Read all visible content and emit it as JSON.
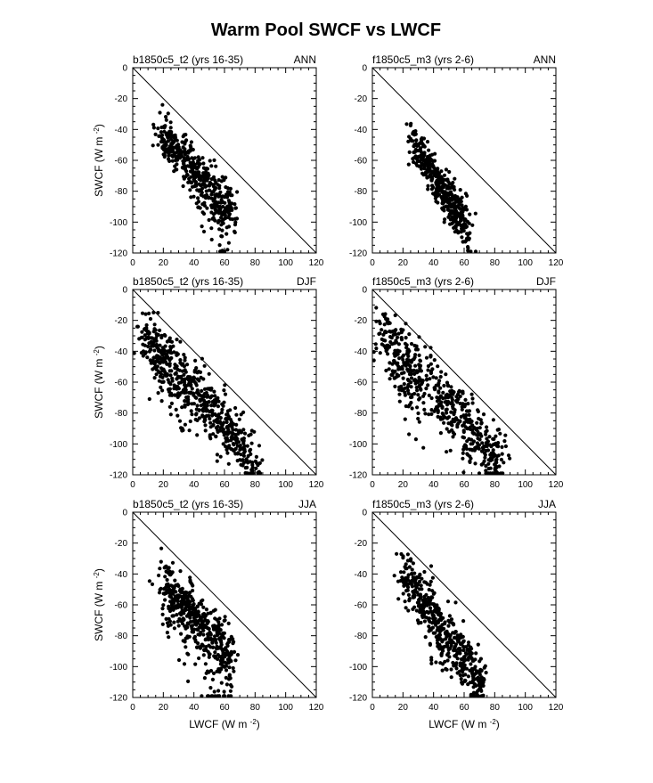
{
  "figure": {
    "title": "Warm Pool SWCF vs LWCF",
    "xlabel": "LWCF (W m",
    "ylabel": "SWCF (W m",
    "unit_exponent": "-2"
  },
  "chart_data": [
    {
      "type": "scatter",
      "left_label": "b1850c5_t2 (yrs 16-35)",
      "right_label": "ANN",
      "xlim": [
        0,
        120
      ],
      "ylim": [
        -120,
        0
      ],
      "xticks": [
        0,
        20,
        40,
        60,
        80,
        100,
        120
      ],
      "yticks": [
        0,
        -20,
        -40,
        -60,
        -80,
        -100,
        -120
      ],
      "reference_line": [
        [
          0,
          0
        ],
        [
          120,
          -120
        ]
      ],
      "clusters": [
        {
          "x0": 18,
          "x1": 65,
          "y0": -42,
          "y1": -95,
          "spread": 7,
          "n": 420
        },
        {
          "x0": 40,
          "x1": 62,
          "y0": -80,
          "y1": -118,
          "spread": 8,
          "n": 40
        }
      ]
    },
    {
      "type": "scatter",
      "left_label": "f1850c5_m3 (yrs 2-6)",
      "right_label": "ANN",
      "xlim": [
        0,
        120
      ],
      "ylim": [
        -120,
        0
      ],
      "xticks": [
        0,
        20,
        40,
        60,
        80,
        100,
        120
      ],
      "yticks": [
        0,
        -20,
        -40,
        -60,
        -80,
        -100,
        -120
      ],
      "reference_line": [
        [
          0,
          0
        ],
        [
          120,
          -120
        ]
      ],
      "clusters": [
        {
          "x0": 26,
          "x1": 62,
          "y0": -48,
          "y1": -102,
          "spread": 6,
          "n": 380
        },
        {
          "x0": 45,
          "x1": 68,
          "y0": -88,
          "y1": -115,
          "spread": 5,
          "n": 40
        }
      ]
    },
    {
      "type": "scatter",
      "left_label": "b1850c5_t2 (yrs 16-35)",
      "right_label": "DJF",
      "xlim": [
        0,
        120
      ],
      "ylim": [
        -120,
        0
      ],
      "xticks": [
        0,
        20,
        40,
        60,
        80,
        100,
        120
      ],
      "yticks": [
        0,
        -20,
        -40,
        -60,
        -80,
        -100,
        -120
      ],
      "reference_line": [
        [
          0,
          0
        ],
        [
          120,
          -120
        ]
      ],
      "clusters": [
        {
          "x0": 6,
          "x1": 80,
          "y0": -27,
          "y1": -112,
          "spread": 9,
          "n": 560
        },
        {
          "x0": 15,
          "x1": 35,
          "y0": -45,
          "y1": -95,
          "spread": 6,
          "n": 40
        }
      ]
    },
    {
      "type": "scatter",
      "left_label": "f1850c5_m3 (yrs 2-6)",
      "right_label": "DJF",
      "xlim": [
        0,
        120
      ],
      "ylim": [
        -120,
        0
      ],
      "xticks": [
        0,
        20,
        40,
        60,
        80,
        100,
        120
      ],
      "yticks": [
        0,
        -20,
        -40,
        -60,
        -80,
        -100,
        -120
      ],
      "reference_line": [
        [
          0,
          0
        ],
        [
          120,
          -120
        ]
      ],
      "clusters": [
        {
          "x0": 5,
          "x1": 85,
          "y0": -25,
          "y1": -115,
          "spread": 10,
          "n": 520
        },
        {
          "x0": 10,
          "x1": 30,
          "y0": -40,
          "y1": -85,
          "spread": 8,
          "n": 60
        }
      ]
    },
    {
      "type": "scatter",
      "left_label": "b1850c5_t2 (yrs 16-35)",
      "right_label": "JJA",
      "xlim": [
        0,
        120
      ],
      "ylim": [
        -120,
        0
      ],
      "xticks": [
        0,
        20,
        40,
        60,
        80,
        100,
        120
      ],
      "yticks": [
        0,
        -20,
        -40,
        -60,
        -80,
        -100,
        -120
      ],
      "reference_line": [
        [
          0,
          0
        ],
        [
          120,
          -120
        ]
      ],
      "clusters": [
        {
          "x0": 20,
          "x1": 65,
          "y0": -45,
          "y1": -95,
          "spread": 9,
          "n": 420
        },
        {
          "x0": 20,
          "x1": 62,
          "y0": -55,
          "y1": -118,
          "spread": 12,
          "n": 80
        }
      ]
    },
    {
      "type": "scatter",
      "left_label": "f1850c5_m3 (yrs 2-6)",
      "right_label": "JJA",
      "xlim": [
        0,
        120
      ],
      "ylim": [
        -120,
        0
      ],
      "xticks": [
        0,
        20,
        40,
        60,
        80,
        100,
        120
      ],
      "yticks": [
        0,
        -20,
        -40,
        -60,
        -80,
        -100,
        -120
      ],
      "reference_line": [
        [
          0,
          0
        ],
        [
          120,
          -120
        ]
      ],
      "clusters": [
        {
          "x0": 20,
          "x1": 72,
          "y0": -38,
          "y1": -112,
          "spread": 8,
          "n": 450
        },
        {
          "x0": 35,
          "x1": 70,
          "y0": -80,
          "y1": -118,
          "spread": 8,
          "n": 40
        }
      ]
    }
  ]
}
